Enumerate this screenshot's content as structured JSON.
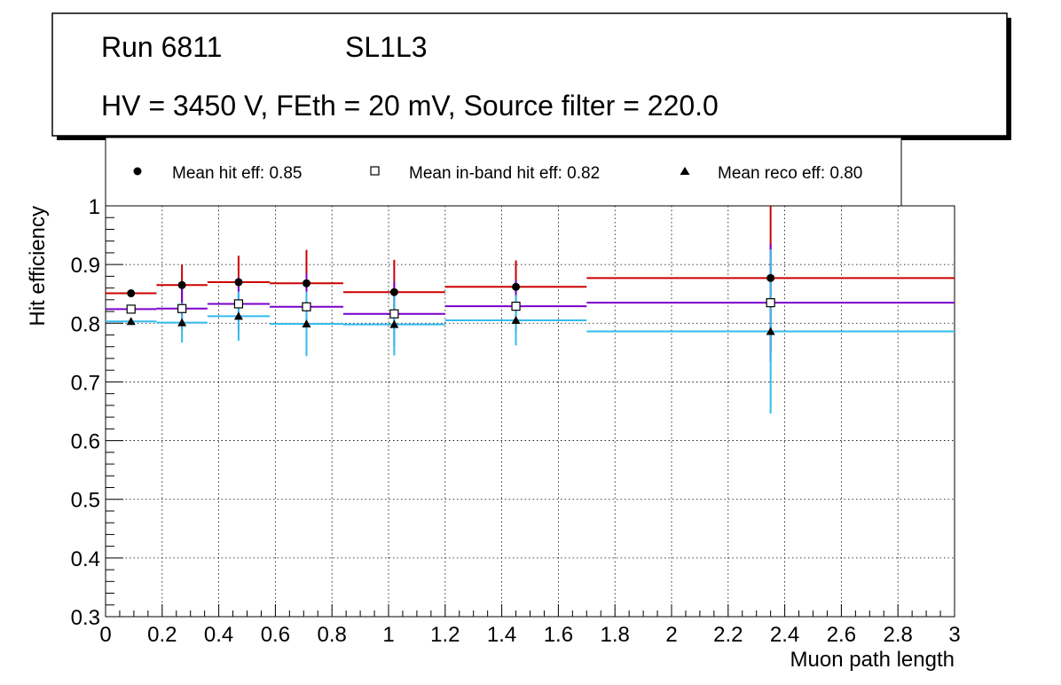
{
  "chart_data": {
    "type": "scatter",
    "title_lines": {
      "run": "Run 6811",
      "layer": "SL1L3",
      "conditions": "HV = 3450 V, FEth = 20 mV, Source filter = 220.0"
    },
    "xlabel": "Muon path length",
    "ylabel": "Hit efficiency",
    "xlim": [
      0,
      3
    ],
    "ylim": [
      0.3,
      1
    ],
    "xticks": [
      0,
      0.2,
      0.4,
      0.6,
      0.8,
      1,
      1.2,
      1.4,
      1.6,
      1.8,
      2,
      2.2,
      2.4,
      2.6,
      2.8,
      3
    ],
    "xtick_labels": [
      "0",
      "0.2",
      "0.4",
      "0.6",
      "0.8",
      "1",
      "1.2",
      "1.4",
      "1.6",
      "1.8",
      "2",
      "2.2",
      "2.4",
      "2.6",
      "2.8",
      "3"
    ],
    "yticks": [
      0.3,
      0.4,
      0.5,
      0.6,
      0.7,
      0.8,
      0.9,
      1
    ],
    "ytick_labels": [
      "0.3",
      "0.4",
      "0.5",
      "0.6",
      "0.7",
      "0.8",
      "0.9",
      "1"
    ],
    "grid": true,
    "legend": {
      "placement": "top",
      "entries": [
        {
          "series": "hit",
          "label": "Mean hit  eff: 0.85"
        },
        {
          "series": "inband",
          "label": "Mean in-band hit eff: 0.82"
        },
        {
          "series": "reco",
          "label": "Mean reco eff: 0.80"
        }
      ]
    },
    "bins": [
      {
        "low": 0,
        "high": 0.18,
        "center": 0.09
      },
      {
        "low": 0.18,
        "high": 0.36,
        "center": 0.27
      },
      {
        "low": 0.36,
        "high": 0.58,
        "center": 0.47
      },
      {
        "low": 0.58,
        "high": 0.84,
        "center": 0.71
      },
      {
        "low": 0.84,
        "high": 1.2,
        "center": 1.02
      },
      {
        "low": 1.2,
        "high": 1.7,
        "center": 1.45
      },
      {
        "low": 1.7,
        "high": 3.0,
        "center": 2.35
      }
    ],
    "series": [
      {
        "name": "hit",
        "marker": "circle",
        "color": "#cc0000",
        "values": [
          0.851,
          0.865,
          0.87,
          0.868,
          0.853,
          0.862,
          0.877
        ],
        "errors": [
          0.003,
          0.035,
          0.045,
          0.057,
          0.055,
          0.045,
          0.125
        ]
      },
      {
        "name": "inband",
        "marker": "open-square",
        "color": "#7a00cc",
        "values": [
          0.824,
          0.825,
          0.833,
          0.828,
          0.816,
          0.829,
          0.835
        ],
        "errors": [
          0.003,
          0.035,
          0.045,
          0.057,
          0.055,
          0.045,
          0.1
        ]
      },
      {
        "name": "reco",
        "marker": "triangle",
        "color": "#33bbee",
        "values": [
          0.803,
          0.801,
          0.812,
          0.799,
          0.798,
          0.805,
          0.786
        ],
        "errors": [
          0.003,
          0.034,
          0.042,
          0.055,
          0.053,
          0.043,
          0.14
        ]
      }
    ]
  }
}
